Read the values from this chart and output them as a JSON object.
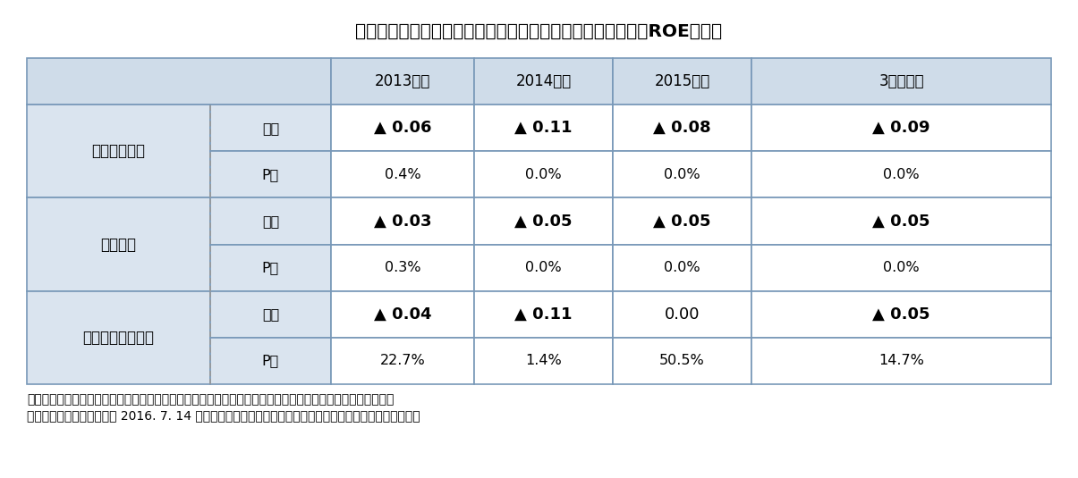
{
  "title": "図表２：政策保有比率、持合比率および従業員持株会比率とROEの関係",
  "title_fontsize": 14.5,
  "header_cols": [
    "2013年度",
    "2014年度",
    "2015年度",
    "3年度平均"
  ],
  "rows": [
    {
      "group_label": "政策保有比率",
      "sub_labels": [
        "係数",
        "P値"
      ],
      "values": [
        [
          "▲ 0.06",
          "▲ 0.11",
          "▲ 0.08",
          "▲ 0.09"
        ],
        [
          "0.4%",
          "0.0%",
          "0.0%",
          "0.0%"
        ]
      ],
      "coef_bold": [
        true,
        true,
        true,
        true
      ]
    },
    {
      "group_label": "持合比率",
      "sub_labels": [
        "係数",
        "P値"
      ],
      "values": [
        [
          "▲ 0.03",
          "▲ 0.05",
          "▲ 0.05",
          "▲ 0.05"
        ],
        [
          "0.3%",
          "0.0%",
          "0.0%",
          "0.0%"
        ]
      ],
      "coef_bold": [
        true,
        true,
        true,
        true
      ]
    },
    {
      "group_label": "従業員持株会比率",
      "sub_labels": [
        "係数",
        "P値"
      ],
      "values": [
        [
          "▲ 0.04",
          "▲ 0.11",
          "0.00",
          "▲ 0.05"
        ],
        [
          "22.7%",
          "1.4%",
          "50.5%",
          "14.7%"
        ]
      ],
      "coef_bold": [
        true,
        true,
        false,
        true
      ]
    }
  ],
  "footer_line1": "（資料）持合比率は、大株主データベース（東洋経済新報社）並びに企業保有株データ（日本経済新聞社）を",
  "footer_line2": "元に弊社にて算出。この他 2016. 7. 14 時点で取得可能な現在企業財務データ（日本経済新聞社）を利用。",
  "bg_color_header": "#cfdce9",
  "bg_color_group": "#dae4ef",
  "bg_color_data": "#ffffff",
  "bg_color_figure": "#ffffff",
  "border_color": "#7898b8",
  "border_color_dashed": "#999999",
  "text_color": "#000000",
  "coef_fontsize": 13,
  "pval_fontsize": 11.5,
  "label_fontsize": 12,
  "sublabel_fontsize": 11.5,
  "header_fontsize": 12,
  "footer_fontsize": 10
}
